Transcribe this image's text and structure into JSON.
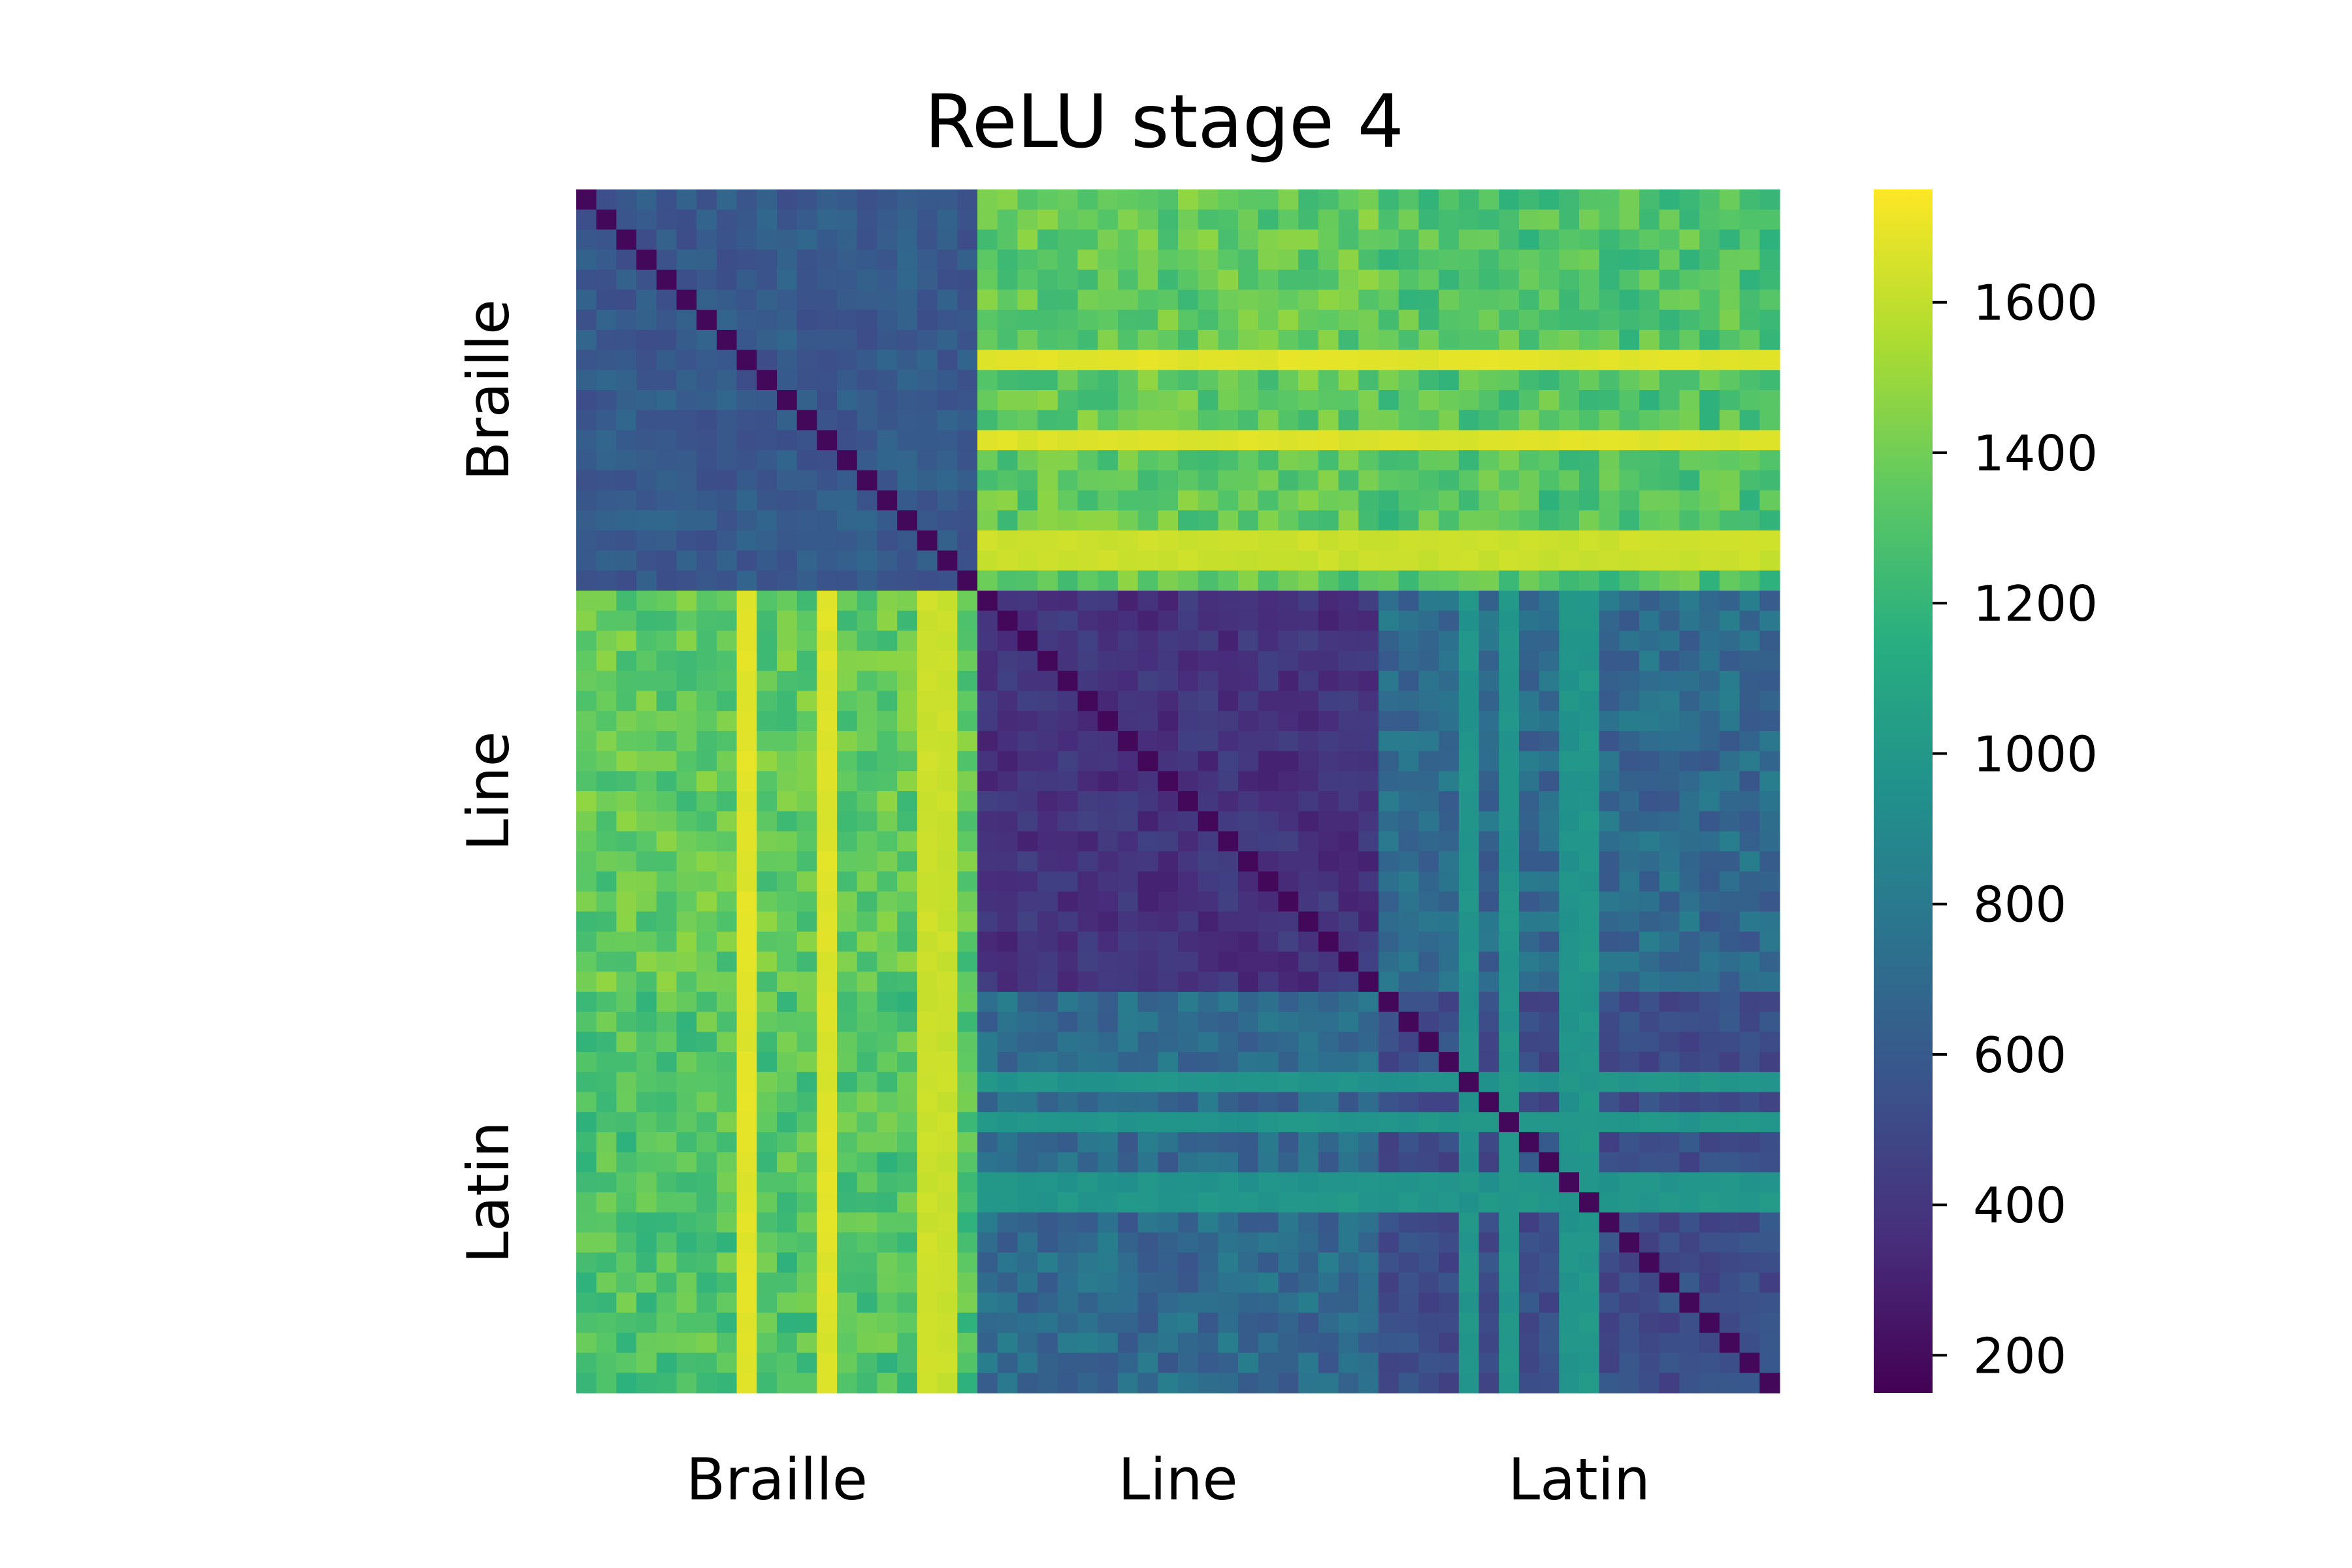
{
  "chart_data": {
    "type": "heatmap",
    "title": "ReLU stage 4",
    "row_groups": [
      {
        "name": "Braille",
        "count": 20
      },
      {
        "name": "Line",
        "count": 20
      },
      {
        "name": "Latin",
        "count": 20
      }
    ],
    "col_groups": [
      {
        "name": "Braille",
        "count": 20
      },
      {
        "name": "Line",
        "count": 20
      },
      {
        "name": "Latin",
        "count": 20
      }
    ],
    "block_means": [
      [
        600,
        1350,
        1300
      ],
      [
        1350,
        380,
        700
      ],
      [
        1300,
        700,
        520
      ]
    ],
    "diagonal_value": 180,
    "bright_braille_columns": [
      {
        "index": 8,
        "value": 1700
      },
      {
        "index": 12,
        "value": 1690
      },
      {
        "index": 17,
        "value": 1650
      },
      {
        "index": 18,
        "value": 1640
      }
    ],
    "bright_latin_rows": [
      {
        "index": 44,
        "value": 1000
      },
      {
        "index": 46,
        "value": 1010
      },
      {
        "index": 49,
        "value": 1000
      },
      {
        "index": 50,
        "value": 1020
      }
    ],
    "colorbar": {
      "colormap": "viridis",
      "range": [
        150,
        1750
      ],
      "ticks": [
        200,
        400,
        600,
        800,
        1000,
        1200,
        1400,
        1600
      ]
    }
  }
}
